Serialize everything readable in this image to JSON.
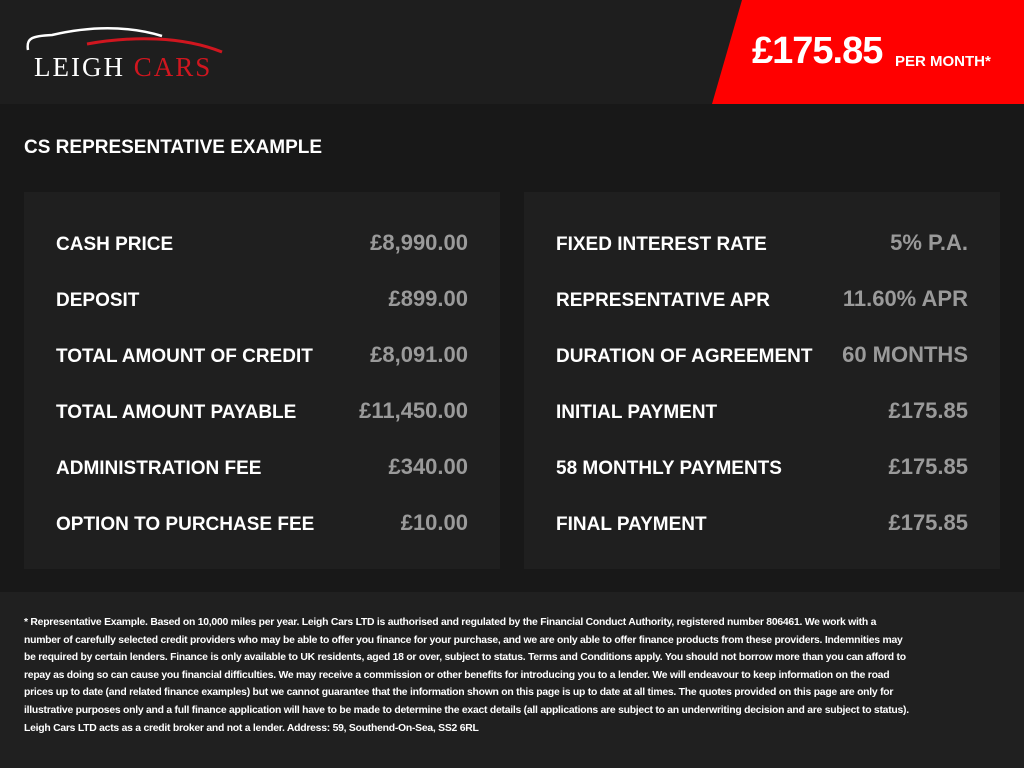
{
  "header": {
    "logo": {
      "word1": "LEIGH",
      "word2": "CARS"
    },
    "price": "£175.85",
    "per_month": "PER MONTH*",
    "accent": "#ff0000"
  },
  "section_title": "CS REPRESENTATIVE EXAMPLE",
  "left_panel": [
    {
      "label": "CASH PRICE",
      "value": "£8,990.00"
    },
    {
      "label": "DEPOSIT",
      "value": "£899.00"
    },
    {
      "label": "TOTAL AMOUNT OF CREDIT",
      "value": "£8,091.00"
    },
    {
      "label": "TOTAL AMOUNT PAYABLE",
      "value": "£11,450.00"
    },
    {
      "label": "ADMINISTRATION FEE",
      "value": "£340.00"
    },
    {
      "label": "OPTION TO PURCHASE FEE",
      "value": "£10.00"
    }
  ],
  "right_panel": [
    {
      "label": "FIXED INTEREST RATE",
      "value": "5% P.A."
    },
    {
      "label": "REPRESENTATIVE APR",
      "value": "11.60% APR"
    },
    {
      "label": "DURATION OF AGREEMENT",
      "value": "60 MONTHS"
    },
    {
      "label": "INITIAL PAYMENT",
      "value": "£175.85"
    },
    {
      "label": "58 MONTHLY PAYMENTS",
      "value": "£175.85"
    },
    {
      "label": "FINAL PAYMENT",
      "value": "£175.85"
    }
  ],
  "disclaimer": "* Representative Example. Based on 10,000 miles per year. Leigh Cars LTD is authorised and regulated by the Financial Conduct Authority, registered number 806461. We work with a number of carefully selected credit providers who may be able to offer you finance for your purchase, and we are only able to offer finance products from these providers. Indemnities may be required by certain lenders. Finance is only available to UK residents, aged 18 or over, subject to status. Terms and Conditions apply. You should not borrow more than you can afford to repay as doing so can cause you financial difficulties. We may receive a commission or other benefits for introducing you to a lender. We will endeavour to keep information on the road prices up to date (and related finance examples) but we cannot guarantee that the information shown on this page is up to date at all times. The quotes provided on this page are only for illustrative purposes only and a full finance application will have to be made to determine the exact details (all applications are subject to an underwriting decision and are subject to status). Leigh Cars LTD acts as a credit broker and not a lender. Address:  59, Southend-On-Sea, SS2 6RL"
}
